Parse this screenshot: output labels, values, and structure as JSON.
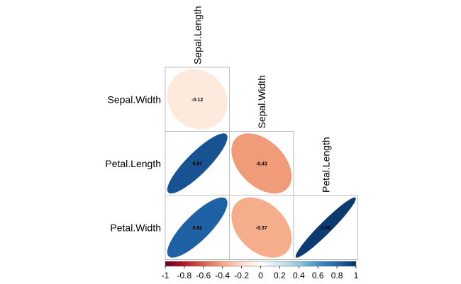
{
  "chart_data": {
    "type": "heatmap",
    "method": "ellipse",
    "layout": "lower-triangle",
    "variables": [
      "Sepal.Length",
      "Sepal.Width",
      "Petal.Length",
      "Petal.Width"
    ],
    "row_labels": [
      "Sepal.Width",
      "Petal.Length",
      "Petal.Width"
    ],
    "column_labels": [
      "Sepal.Length",
      "Sepal.Width",
      "Petal.Length"
    ],
    "cells": [
      {
        "row": "Sepal.Width",
        "col": "Sepal.Length",
        "value": -0.12,
        "label": "-0.12"
      },
      {
        "row": "Petal.Length",
        "col": "Sepal.Length",
        "value": 0.87,
        "label": "0.87"
      },
      {
        "row": "Petal.Length",
        "col": "Sepal.Width",
        "value": -0.43,
        "label": "-0.43"
      },
      {
        "row": "Petal.Width",
        "col": "Sepal.Length",
        "value": 0.82,
        "label": "0.82"
      },
      {
        "row": "Petal.Width",
        "col": "Sepal.Width",
        "value": -0.37,
        "label": "-0.37"
      },
      {
        "row": "Petal.Width",
        "col": "Petal.Length",
        "value": 0.96,
        "label": "0.96"
      }
    ],
    "colorbar": {
      "range": [
        -1,
        1
      ],
      "tick_labels": [
        "-1",
        "-0.8",
        "-0.6",
        "-0.4",
        "-0.2",
        "0",
        "0.2",
        "0.4",
        "0.6",
        "0.8",
        "1"
      ],
      "placement": "bottom",
      "colors": [
        "#67001F",
        "#B2182B",
        "#D6604D",
        "#F4A582",
        "#FDDBC7",
        "#FFFFFF",
        "#D1E5F0",
        "#92C5DE",
        "#4393C3",
        "#2166AC",
        "#053061"
      ]
    },
    "grid_color": "#BEBEBE"
  }
}
